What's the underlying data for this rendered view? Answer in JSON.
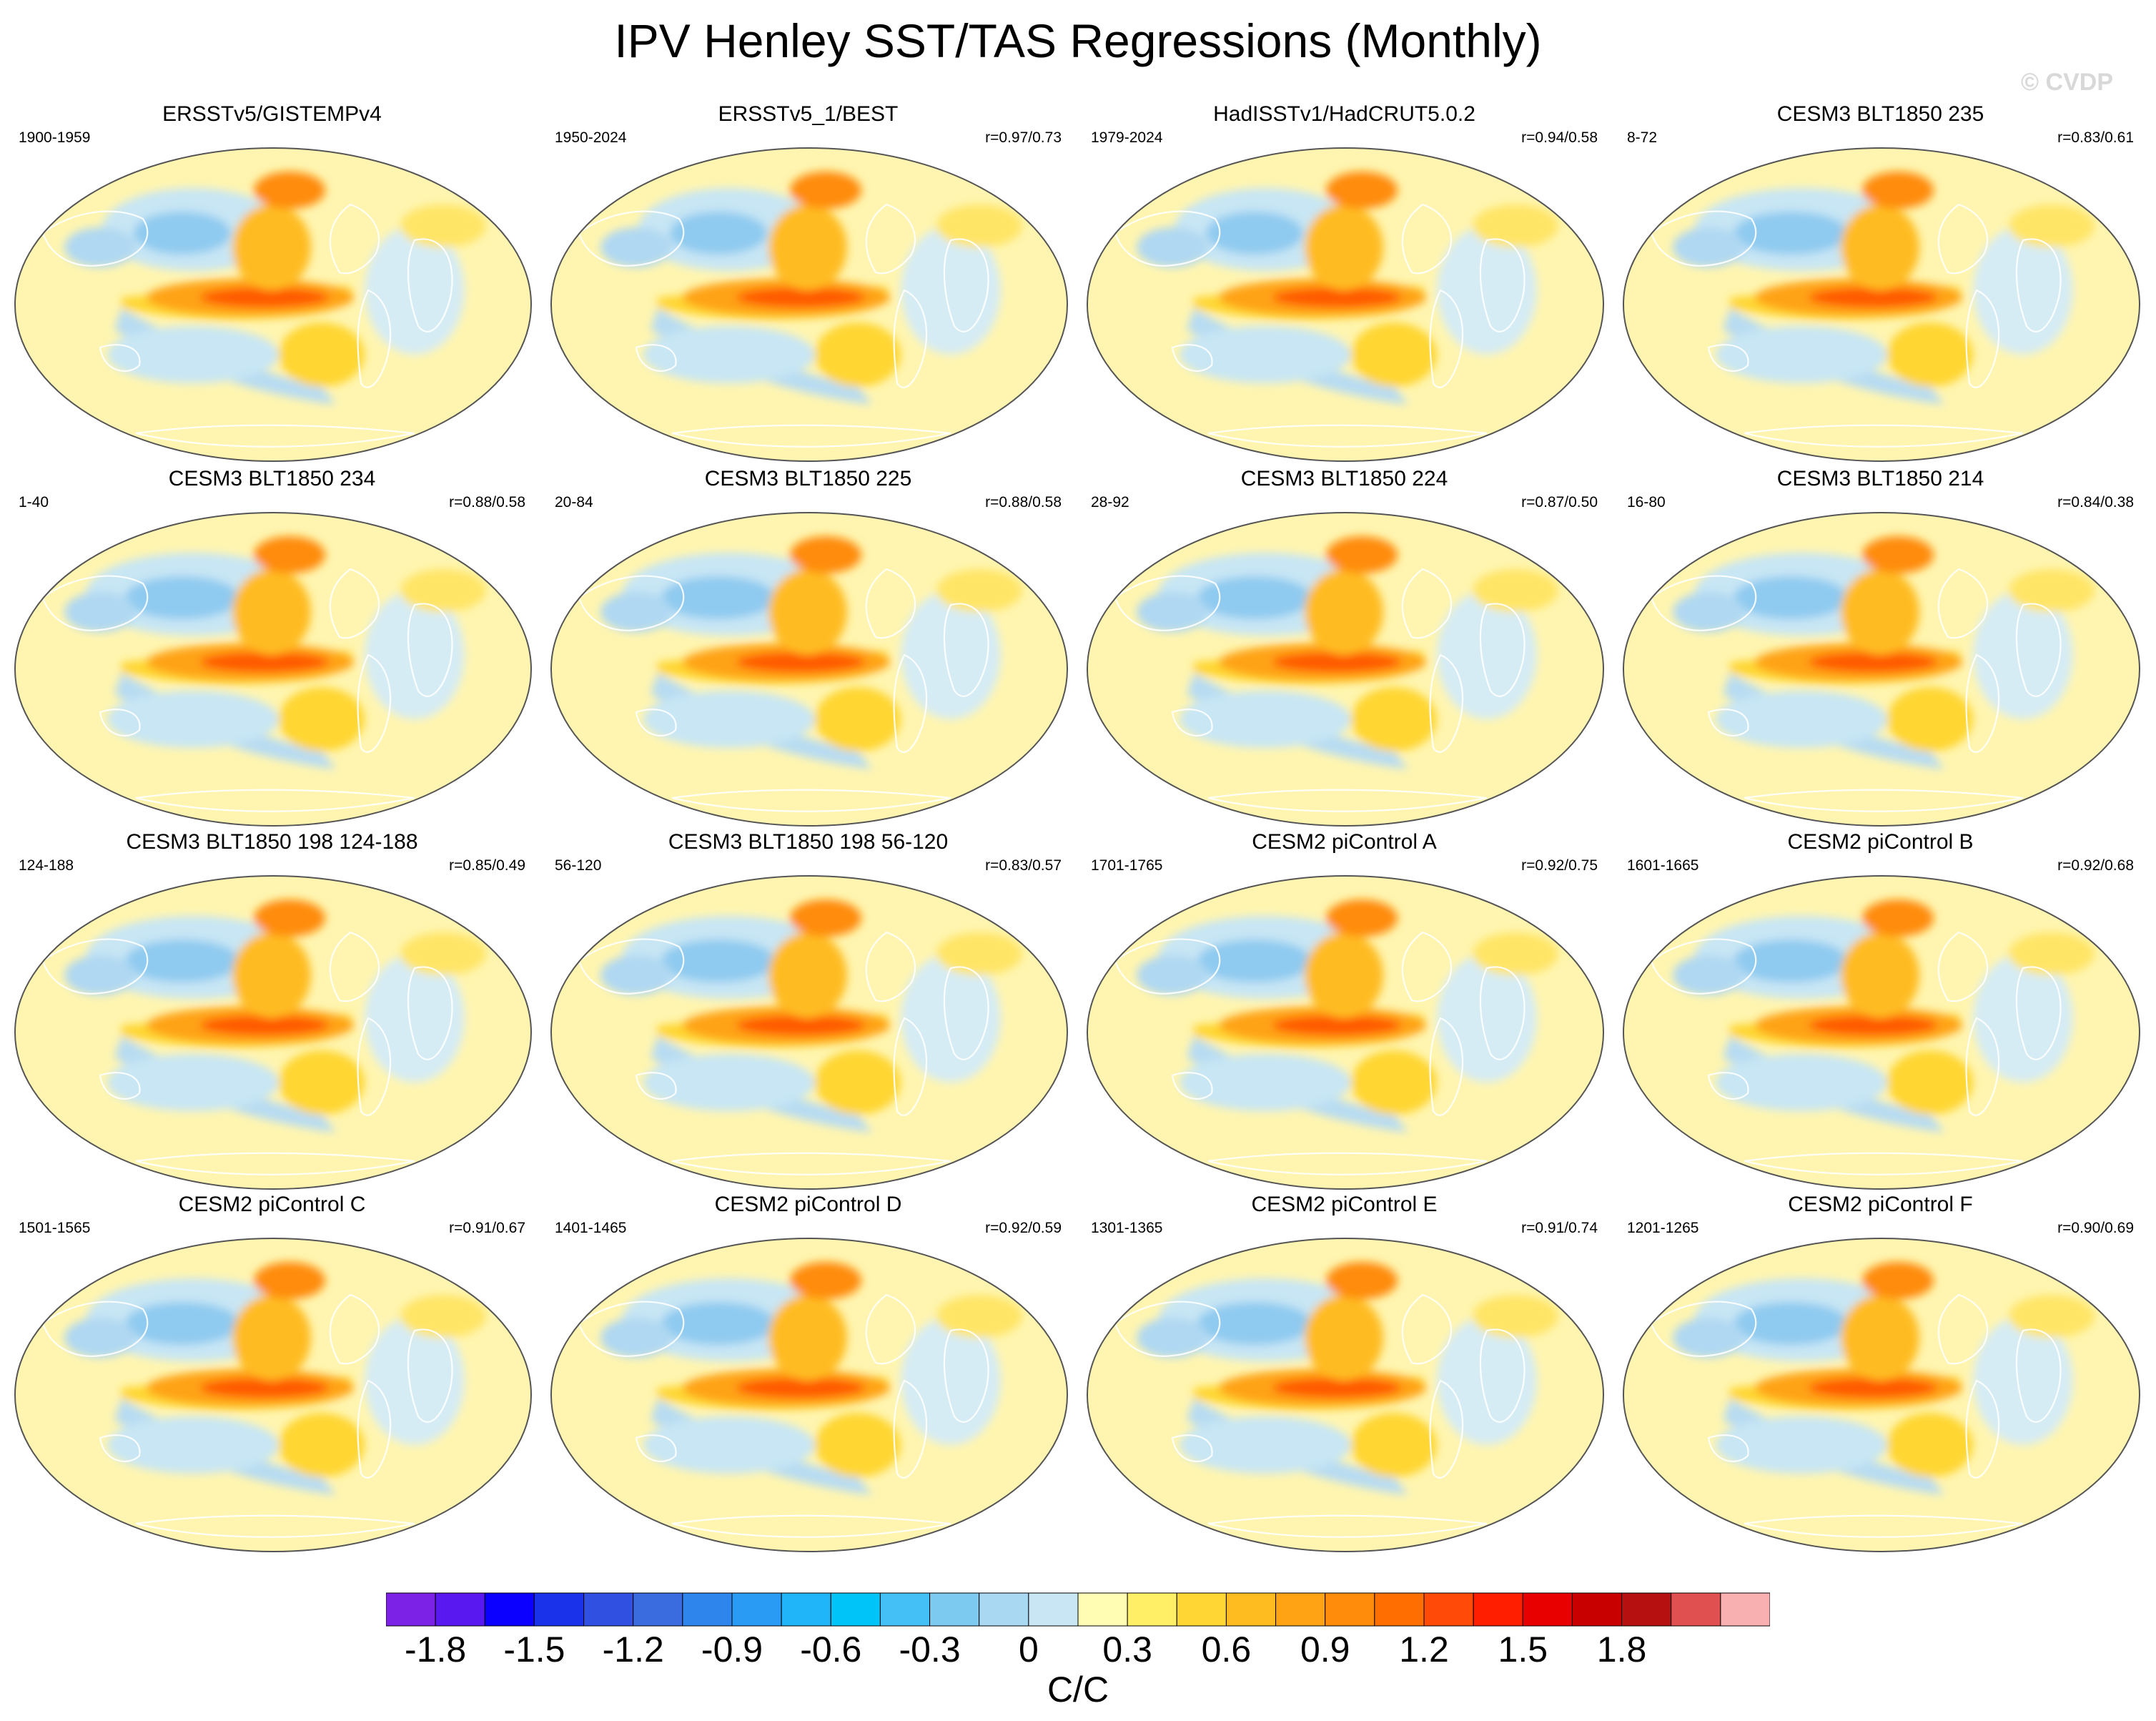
{
  "title": "IPV Henley SST/TAS Regressions (Monthly)",
  "watermark": "© CVDP",
  "units": "C/C",
  "colorbar": {
    "tick_labels": [
      "-1.8",
      "-1.5",
      "-1.2",
      "-0.9",
      "-0.6",
      "-0.3",
      "0",
      "0.3",
      "0.6",
      "0.9",
      "1.2",
      "1.5",
      "1.8"
    ],
    "colors": [
      "#7b22e6",
      "#5a18f0",
      "#0b00ff",
      "#1a32ea",
      "#2f50e0",
      "#3a6ce0",
      "#2e86ec",
      "#2a9bf4",
      "#20b4f8",
      "#00c4f8",
      "#45c0f6",
      "#7ccaf0",
      "#a8d8f2",
      "#c8e6f4",
      "#fffcb4",
      "#ffef66",
      "#ffd633",
      "#ffbc21",
      "#ffa314",
      "#ff8c0a",
      "#ff6e00",
      "#ff4a08",
      "#ff1e00",
      "#e80000",
      "#c80000",
      "#b61010",
      "#e05050",
      "#f8b0b0"
    ]
  },
  "panels": [
    {
      "title": "ERSSTv5/GISTEMPv4",
      "period": "1900-1959",
      "corr": "",
      "ref": true
    },
    {
      "title": "ERSSTv5_1/BEST",
      "period": "1950-2024",
      "corr": "r=0.97/0.73",
      "ref": true
    },
    {
      "title": "HadISSTv1/HadCRUT5.0.2",
      "period": "1979-2024",
      "corr": "r=0.94/0.58",
      "ref": true
    },
    {
      "title": "CESM3 BLT1850 235",
      "period": "8-72",
      "corr": "r=0.83/0.61"
    },
    {
      "title": "CESM3 BLT1850 234",
      "period": "1-40",
      "corr": "r=0.88/0.58"
    },
    {
      "title": "CESM3 BLT1850 225",
      "period": "20-84",
      "corr": "r=0.88/0.58"
    },
    {
      "title": "CESM3 BLT1850 224",
      "period": "28-92",
      "corr": "r=0.87/0.50"
    },
    {
      "title": "CESM3 BLT1850 214",
      "period": "16-80",
      "corr": "r=0.84/0.38"
    },
    {
      "title": "CESM3 BLT1850 198 124-188",
      "period": "124-188",
      "corr": "r=0.85/0.49"
    },
    {
      "title": "CESM3 BLT1850 198 56-120",
      "period": "56-120",
      "corr": "r=0.83/0.57"
    },
    {
      "title": "CESM2 piControl A",
      "period": "1701-1765",
      "corr": "r=0.92/0.75"
    },
    {
      "title": "CESM2 piControl B",
      "period": "1601-1665",
      "corr": "r=0.92/0.68"
    },
    {
      "title": "CESM2 piControl C",
      "period": "1501-1565",
      "corr": "r=0.91/0.67"
    },
    {
      "title": "CESM2 piControl D",
      "period": "1401-1465",
      "corr": "r=0.92/0.59"
    },
    {
      "title": "CESM2 piControl E",
      "period": "1301-1365",
      "corr": "r=0.91/0.74"
    },
    {
      "title": "CESM2 piControl F",
      "period": "1201-1265",
      "corr": "r=0.90/0.69"
    }
  ]
}
